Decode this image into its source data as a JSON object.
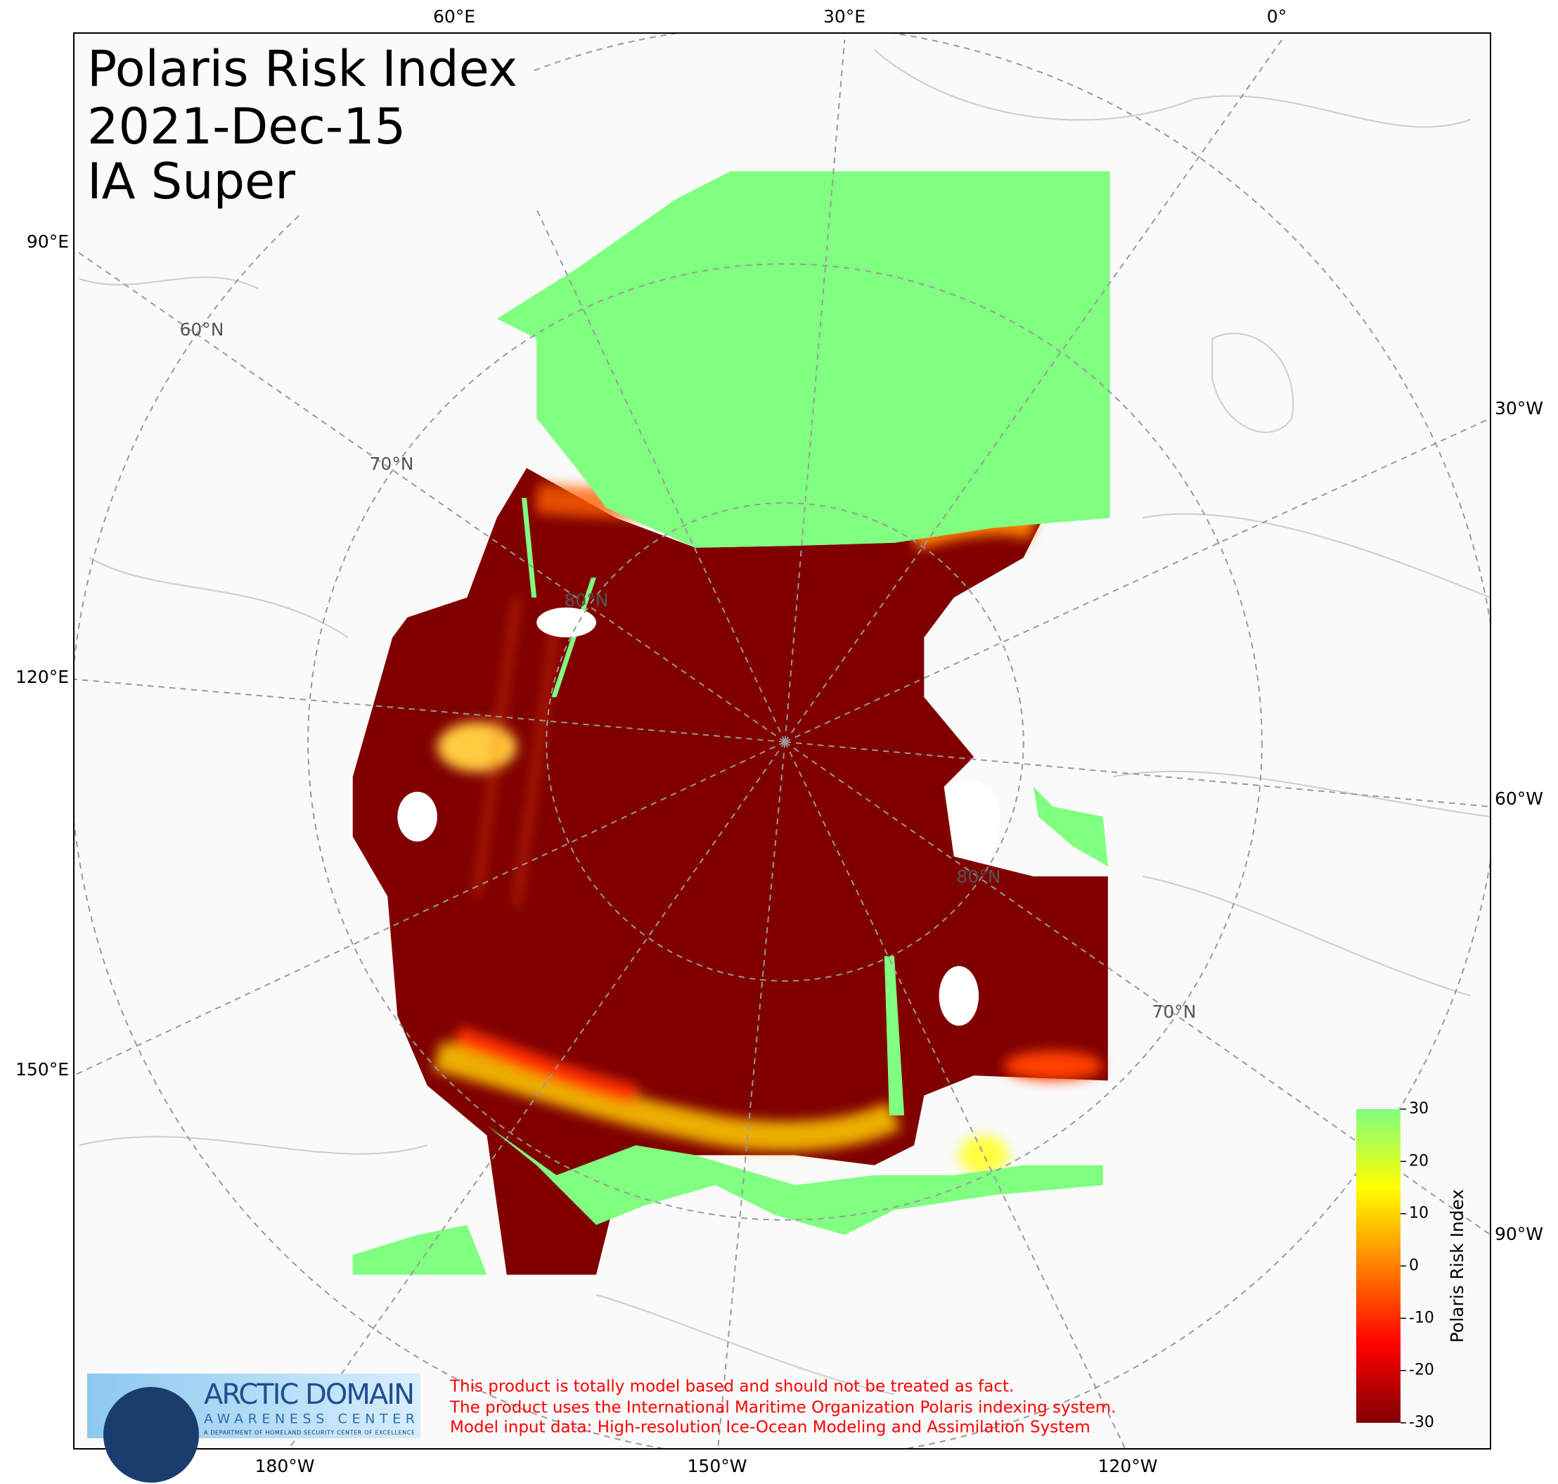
{
  "map": {
    "type": "polar-map",
    "title_lines": [
      "Polaris Risk Index",
      "2021-Dec-15",
      "IA Super"
    ],
    "longitude_labels": {
      "top": [
        "60°E",
        "30°E",
        "0°"
      ],
      "left": [
        "90°E",
        "120°E",
        "150°E"
      ],
      "right": [
        "30°W",
        "60°W",
        "90°W"
      ],
      "bottom": [
        "180°W",
        "150°W",
        "120°W"
      ]
    },
    "latitude_labels": [
      "60°N",
      "70°N",
      "80°N",
      "80°N",
      "70°N"
    ],
    "colorbar": {
      "label": "Polaris Risk Index",
      "ylim": [
        -30,
        30
      ],
      "yticks": [
        -30,
        -20,
        -10,
        0,
        10,
        20,
        30
      ],
      "colors": [
        "#800000",
        "#ff0000",
        "#ff8000",
        "#ffff00",
        "#80ff80"
      ]
    },
    "disclaimer": [
      "This product is totally model based and should not be treated as fact.",
      "The product uses the International Maritime Organization Polaris indexing system.",
      "Model input data: High-resolution Ice-Ocean Modeling and Assimilation System"
    ],
    "logo": {
      "title": "ARCTIC DOMAIN",
      "subtitle": "AWARENESS CENTER",
      "tagline": "A DEPARTMENT OF HOMELAND SECURITY CENTER OF EXCELLENCE"
    }
  }
}
